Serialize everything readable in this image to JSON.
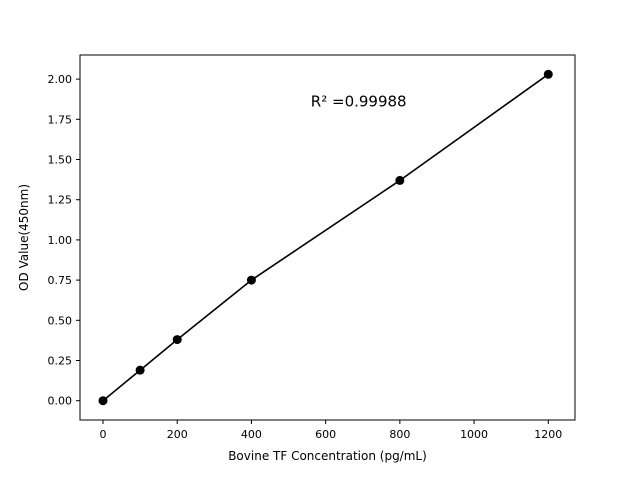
{
  "chart_data": {
    "type": "scatter",
    "title": "",
    "xlabel": "Bovine TF Concentration (pg/mL)",
    "ylabel": "OD Value(450nm)",
    "x": [
      0,
      100,
      200,
      400,
      800,
      1200
    ],
    "y": [
      0.0,
      0.19,
      0.38,
      0.75,
      1.37,
      2.03
    ],
    "fit_line": true,
    "annotation": "R² =0.99988",
    "annotation_pos": {
      "x": 560,
      "y": 1.83
    },
    "xticks": [
      0,
      200,
      400,
      600,
      800,
      1000,
      1200
    ],
    "yticks": [
      0.0,
      0.25,
      0.5,
      0.75,
      1.0,
      1.25,
      1.5,
      1.75,
      2.0
    ],
    "xlim": [
      -62,
      1272
    ],
    "ylim": [
      -0.12,
      2.15
    ],
    "grid": false,
    "legend": null,
    "marker_color": "#000000",
    "line_color": "#000000",
    "background_color": "#ffffff"
  }
}
